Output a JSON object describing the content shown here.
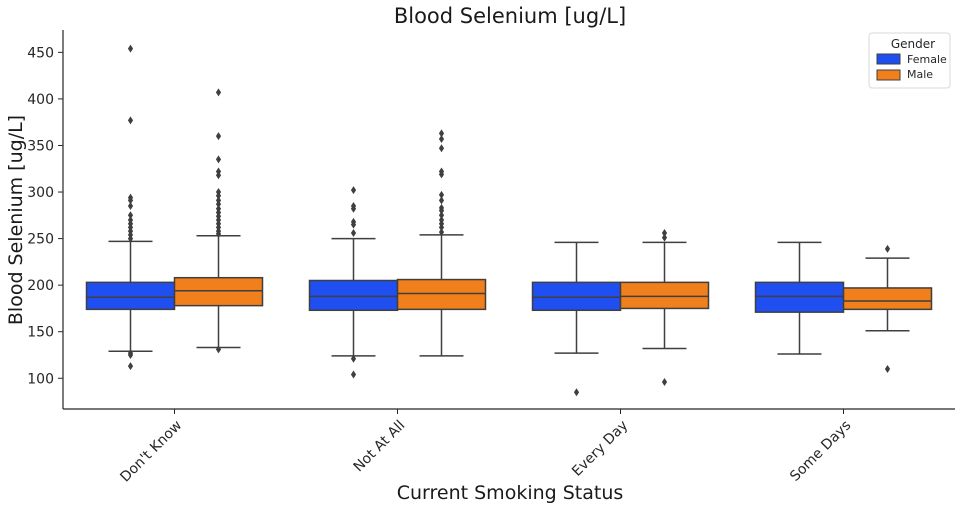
{
  "chart_data": {
    "type": "box",
    "title": "Blood Selenium [ug/L]",
    "xlabel": "Current Smoking Status",
    "ylabel": "Blood Selenium [ug/L]",
    "ylim": [
      67,
      474
    ],
    "yticks": [
      100,
      150,
      200,
      250,
      300,
      350,
      400,
      450
    ],
    "categories": [
      "Don't Know",
      "Not At All",
      "Every Day",
      "Some Days"
    ],
    "legend": {
      "title": "Gender",
      "position": "top-right"
    },
    "grid": false,
    "series": [
      {
        "name": "Female",
        "color": "#1f4ff0",
        "boxes": [
          {
            "min": 129,
            "q1": 174,
            "median": 187,
            "q3": 203,
            "max": 247,
            "outliers": [
              454,
              377,
              294,
              291,
              285,
              275,
              270,
              266,
              262,
              258,
              254,
              250,
              127,
              125,
              113
            ]
          },
          {
            "min": 124,
            "q1": 173,
            "median": 188,
            "q3": 205,
            "max": 250,
            "outliers": [
              302,
              285,
              282,
              268,
              265,
              256,
              121,
              104
            ]
          },
          {
            "min": 127,
            "q1": 173,
            "median": 187,
            "q3": 203,
            "max": 246,
            "outliers": [
              85
            ]
          },
          {
            "min": 126,
            "q1": 171,
            "median": 188,
            "q3": 203,
            "max": 246,
            "outliers": []
          }
        ]
      },
      {
        "name": "Male",
        "color": "#f07f1c",
        "boxes": [
          {
            "min": 133,
            "q1": 178,
            "median": 194,
            "q3": 208,
            "max": 253,
            "outliers": [
              407,
              360,
              335,
              322,
              318,
              300,
              296,
              291,
              287,
              282,
              278,
              274,
              270,
              266,
              262,
              258,
              255,
              131
            ]
          },
          {
            "min": 124,
            "q1": 174,
            "median": 191,
            "q3": 206,
            "max": 254,
            "outliers": [
              363,
              357,
              347,
              322,
              319,
              297,
              291,
              283,
              280,
              275,
              270,
              266,
              262,
              257
            ]
          },
          {
            "min": 132,
            "q1": 175,
            "median": 188,
            "q3": 203,
            "max": 246,
            "outliers": [
              256,
              251,
              96
            ]
          },
          {
            "min": 151,
            "q1": 174,
            "median": 183,
            "q3": 197,
            "max": 229,
            "outliers": [
              239,
              110
            ]
          }
        ]
      }
    ]
  }
}
